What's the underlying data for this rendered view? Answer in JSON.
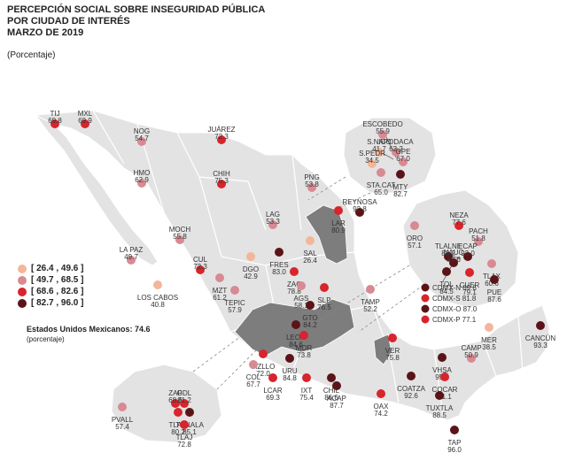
{
  "title_lines": [
    "PERCEPCIÓN SOCIAL SOBRE INSEGURIDAD PÚBLICA",
    "POR CIUDAD DE INTERÉS",
    "MARZO DE 2019"
  ],
  "subtitle": "(Porcentaje)",
  "legend": [
    {
      "label": "[ 26.4 , 49.6 ]",
      "color": "#f4b69a"
    },
    {
      "label": "[ 49.7 , 68.5 ]",
      "color": "#d88a92"
    },
    {
      "label": "[ 68.6 , 82.6 ]",
      "color": "#d8242c"
    },
    {
      "label": "[ 82.7 , 96.0 ]",
      "color": "#5a1418"
    }
  ],
  "national": {
    "label": "Estados Unidos Mexicanos:",
    "value": "74.6",
    "sub": "(porcentaje)"
  },
  "colors": {
    "land": "#e3e3e3",
    "state_border": "#ffffff",
    "highlight": "#7d7d7d",
    "inset_bg": "#e3e3e3"
  },
  "cities": [
    {
      "name": "TIJ",
      "value": "69.8",
      "cls": 3
    },
    {
      "name": "MXL",
      "value": "69.9",
      "cls": 3
    },
    {
      "name": "NOG",
      "value": "54.7",
      "cls": 2
    },
    {
      "name": "JUÁREZ",
      "value": "72.3",
      "cls": 3
    },
    {
      "name": "HMO",
      "value": "62.9",
      "cls": 2
    },
    {
      "name": "CHIH",
      "value": "75.3",
      "cls": 3
    },
    {
      "name": "PNG",
      "value": "53.8",
      "cls": 2
    },
    {
      "name": "LAR",
      "value": "80.9",
      "cls": 3
    },
    {
      "name": "REYNOSA",
      "value": "92.8",
      "cls": 4
    },
    {
      "name": "LAG",
      "value": "53.3",
      "cls": 2
    },
    {
      "name": "SAL",
      "value": "26.4",
      "cls": 1
    },
    {
      "name": "MOCH",
      "value": "55.8",
      "cls": 2
    },
    {
      "name": "DGO",
      "value": "42.9",
      "cls": 1
    },
    {
      "name": "LA PAZ",
      "value": "49.7",
      "cls": 2
    },
    {
      "name": "LOS CABOS",
      "value": "40.8",
      "cls": 1
    },
    {
      "name": "CUL",
      "value": "72.3",
      "cls": 3
    },
    {
      "name": "MZT",
      "value": "61.2",
      "cls": 2
    },
    {
      "name": "FRES",
      "value": "83.0",
      "cls": 4
    },
    {
      "name": "ZAC",
      "value": "78.8",
      "cls": 3
    },
    {
      "name": "AGS",
      "value": "58.1",
      "cls": 2
    },
    {
      "name": "SLP",
      "value": "76.5",
      "cls": 3
    },
    {
      "name": "TEPIC",
      "value": "57.9",
      "cls": 2
    },
    {
      "name": "GTO",
      "value": "84.2",
      "cls": 4
    },
    {
      "name": "TAMP",
      "value": "52.2",
      "cls": 2
    },
    {
      "name": "LEON",
      "value": "84.6",
      "cls": 4
    },
    {
      "name": "MOR",
      "value": "73.8",
      "cls": 3
    },
    {
      "name": "VER",
      "value": "75.8",
      "cls": 3
    },
    {
      "name": "URU",
      "value": "84.8",
      "cls": 4
    },
    {
      "name": "MZLLO",
      "value": "72.0",
      "cls": 3
    },
    {
      "name": "COL",
      "value": "67.7",
      "cls": 2
    },
    {
      "name": "LCAR",
      "value": "69.3",
      "cls": 3
    },
    {
      "name": "IXT",
      "value": "75.4",
      "cls": 3
    },
    {
      "name": "CHIL",
      "value": "86.6",
      "cls": 4
    },
    {
      "name": "ACAP",
      "value": "87.7",
      "cls": 4
    },
    {
      "name": "OAX",
      "value": "74.2",
      "cls": 3
    },
    {
      "name": "COATZA",
      "value": "92.6",
      "cls": 4
    },
    {
      "name": "VHSA",
      "value": "95.2",
      "cls": 4
    },
    {
      "name": "COCAR",
      "value": "71.1",
      "cls": 3
    },
    {
      "name": "TUXTLA",
      "value": "88.5",
      "cls": 4
    },
    {
      "name": "TAP",
      "value": "96.0",
      "cls": 4
    },
    {
      "name": "CAMP",
      "value": "50.9",
      "cls": 2
    },
    {
      "name": "MER",
      "value": "38.5",
      "cls": 1
    },
    {
      "name": "CANCÚN",
      "value": "93.3",
      "cls": 4
    },
    {
      "name": "ZAP",
      "value": "68.6",
      "cls": 3
    },
    {
      "name": "GDL",
      "value": "81.2",
      "cls": 3
    },
    {
      "name": "TLAQ",
      "value": "80.2",
      "cls": 3
    },
    {
      "name": "TONALA",
      "value": "85.1",
      "cls": 4
    },
    {
      "name": "TLAJ",
      "value": "72.8",
      "cls": 3
    },
    {
      "name": "PVALL",
      "value": "57.4",
      "cls": 2
    },
    {
      "name": "ESCOBEDO",
      "value": "55.9",
      "cls": 2
    },
    {
      "name": "S.NICO",
      "value": "41.7",
      "cls": 1
    },
    {
      "name": "APODACA",
      "value": "62.2",
      "cls": 2
    },
    {
      "name": "S.PEDR",
      "value": "34.5",
      "cls": 1
    },
    {
      "name": "GPE",
      "value": "67.0",
      "cls": 2
    },
    {
      "name": "STA.CAT",
      "value": "65.0",
      "cls": 2
    },
    {
      "name": "MTY",
      "value": "82.7",
      "cls": 4
    },
    {
      "name": "ORO",
      "value": "57.1",
      "cls": 2
    },
    {
      "name": "NEZA",
      "value": "77.6",
      "cls": 3
    },
    {
      "name": "PACH",
      "value": "51.8",
      "cls": 2
    },
    {
      "name": "TLALNE",
      "value": "88.2",
      "cls": 4
    },
    {
      "name": "ECAP",
      "value": "92.0",
      "cls": 4
    },
    {
      "name": "NAUC",
      "value": "88.6",
      "cls": 4
    },
    {
      "name": "TLAX",
      "value": "60.6",
      "cls": 2
    },
    {
      "name": "CUER",
      "value": "79.1",
      "cls": 3
    },
    {
      "name": "TOL",
      "value": "84.5",
      "cls": 4
    },
    {
      "name": "PUE",
      "value": "87.6",
      "cls": 4
    },
    {
      "name": "CDMX-N",
      "value": "89.6",
      "cls": 4
    },
    {
      "name": "CDMX-S",
      "value": "81.8",
      "cls": 3
    },
    {
      "name": "CDMX-O",
      "value": "87.0",
      "cls": 4
    },
    {
      "name": "CDMX-P",
      "value": "77.1",
      "cls": 3
    }
  ]
}
